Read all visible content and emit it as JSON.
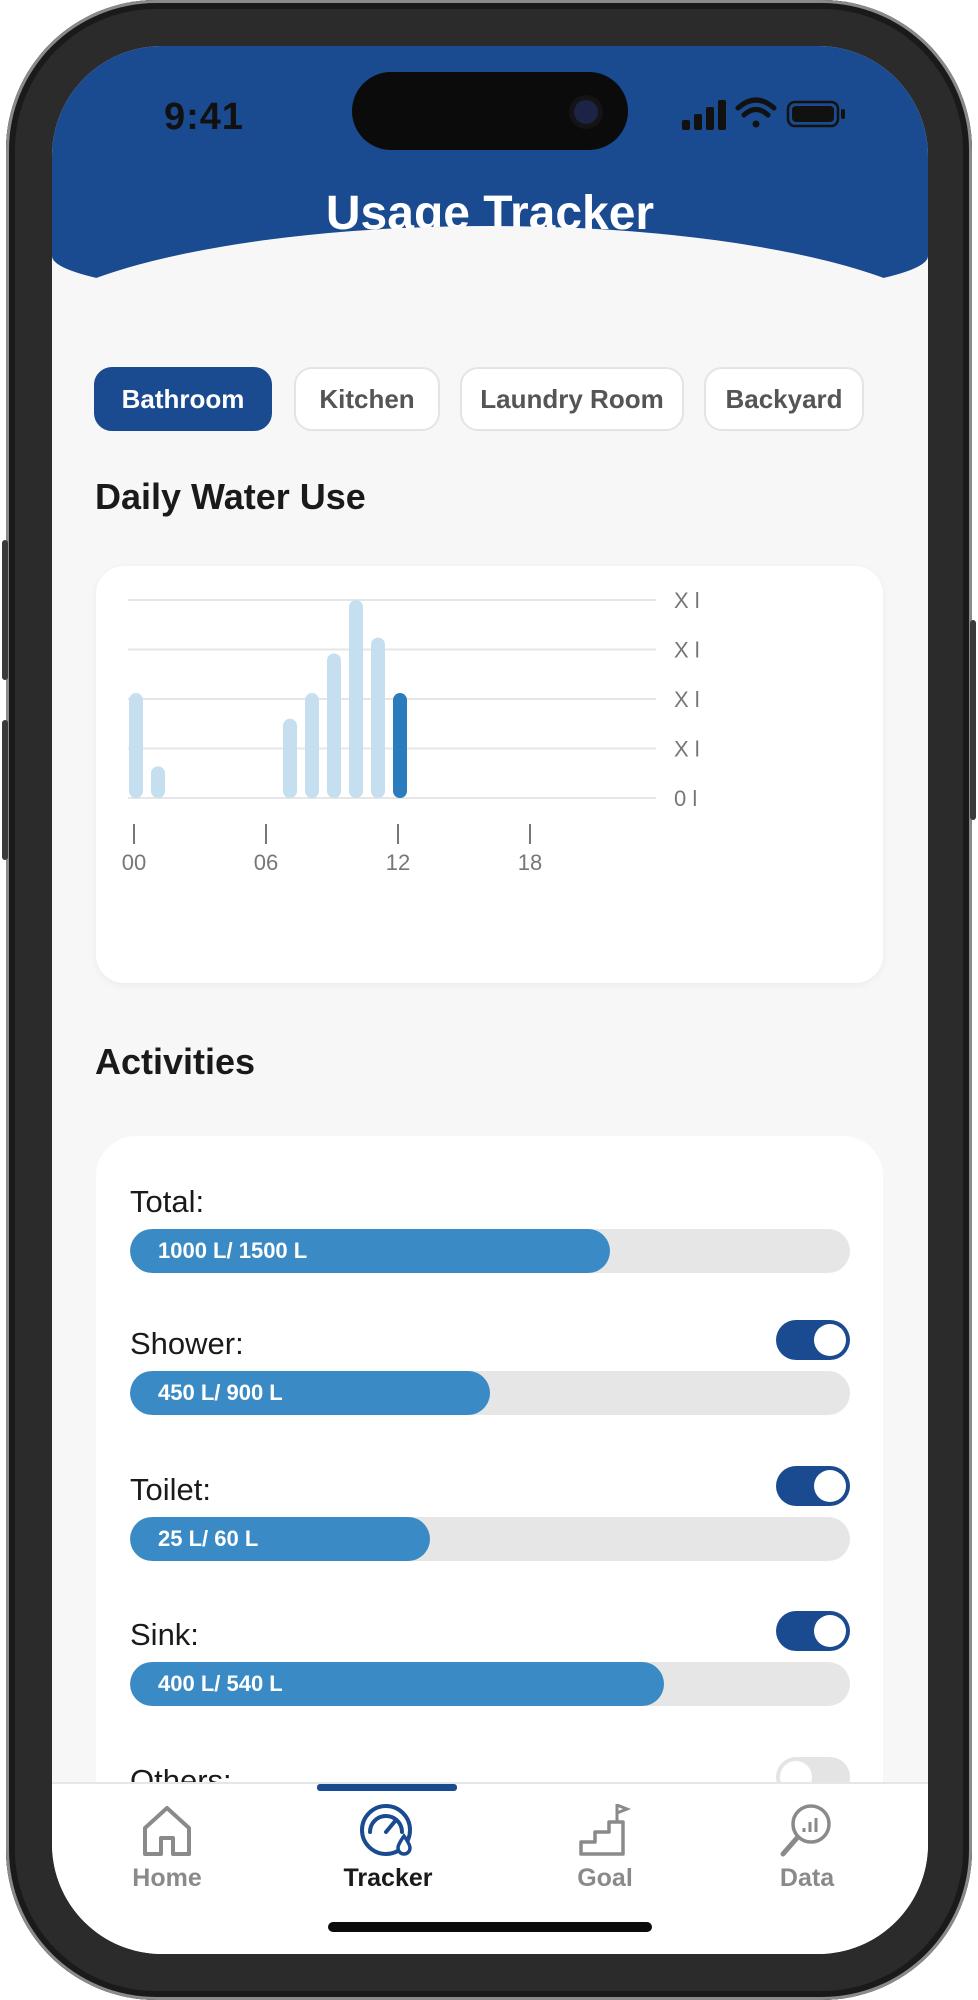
{
  "status_bar": {
    "time": "9:41"
  },
  "header": {
    "title": "Usage Tracker"
  },
  "tabs": [
    {
      "label": "Bathroom",
      "active": true
    },
    {
      "label": "Kitchen",
      "active": false
    },
    {
      "label": "Laundry Room",
      "active": false
    },
    {
      "label": "Backyard",
      "active": false
    }
  ],
  "daily_section": {
    "title": "Daily Water Use"
  },
  "chart_data": {
    "type": "bar",
    "y_tick_labels": [
      "X l",
      "X l",
      "X l",
      "X l",
      "0 l"
    ],
    "x_tick_labels": [
      "00",
      "06",
      "12",
      "18"
    ],
    "hours": [
      0,
      1,
      7,
      8,
      9,
      10,
      11,
      12
    ],
    "values": [
      0.53,
      0.16,
      0.4,
      0.53,
      0.73,
      1.0,
      0.81,
      0.53
    ],
    "highlight_hour": 12,
    "colors": {
      "bar": "#c5dff0",
      "highlight": "#2b7cbf",
      "grid": "#e6e6e6"
    }
  },
  "activities": {
    "title": "Activities",
    "items": [
      {
        "label": "Total:",
        "text": "1000 L/ 1500 L",
        "fraction": 0.667,
        "toggle": null
      },
      {
        "label": "Shower:",
        "text": "450 L/ 900 L",
        "fraction": 0.5,
        "toggle": true
      },
      {
        "label": "Toilet:",
        "text": "25 L/ 60 L",
        "fraction": 0.417,
        "toggle": true
      },
      {
        "label": "Sink:",
        "text": "400 L/ 540 L",
        "fraction": 0.741,
        "toggle": true
      },
      {
        "label": "Others:",
        "toggle": false
      }
    ]
  },
  "nav": [
    {
      "label": "Home",
      "icon": "home-icon",
      "active": false
    },
    {
      "label": "Tracker",
      "icon": "tracker-gauge-icon",
      "active": true
    },
    {
      "label": "Goal",
      "icon": "goal-flag-icon",
      "active": false
    },
    {
      "label": "Data",
      "icon": "data-search-icon",
      "active": false
    }
  ],
  "colors": {
    "primary": "#1a4a8f",
    "fill": "#3a8bc5",
    "track": "#e6e6e6"
  }
}
